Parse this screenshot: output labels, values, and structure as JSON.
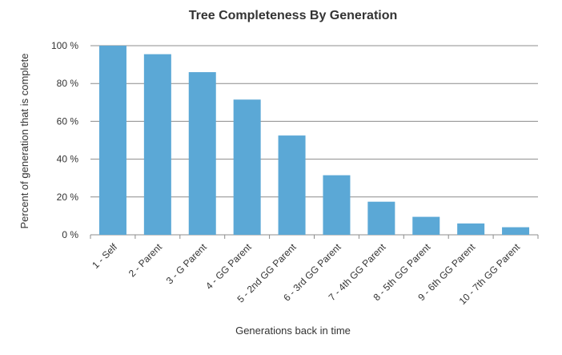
{
  "chart_data": {
    "type": "bar",
    "title": "Tree Completeness By Generation",
    "xlabel": "Generations back in time",
    "ylabel": "Percent of generation that is complete",
    "categories": [
      "1 - Self",
      "2 - Parent",
      "3 - G Parent",
      "4 - GG Parent",
      "5 - 2nd GG Parent",
      "6 - 3rd GG Parent",
      "7 - 4th GG Parent",
      "8 - 5th GG Parent",
      "9 - 6th GG Parent",
      "10 - 7th GG Parent"
    ],
    "values": [
      100,
      95.5,
      86,
      71.5,
      52.5,
      31.5,
      17.5,
      9.5,
      6,
      4
    ],
    "ylim": [
      0,
      100
    ],
    "yticks": [
      0,
      20,
      40,
      60,
      80,
      100
    ],
    "ytick_labels": [
      "0 %",
      "20 %",
      "40 %",
      "60 %",
      "80 %",
      "100 %"
    ],
    "grid": true,
    "legend": "none",
    "colors": {
      "bar": "#5ba8d6",
      "grid": "#8c8c8c",
      "text": "#333333"
    }
  }
}
